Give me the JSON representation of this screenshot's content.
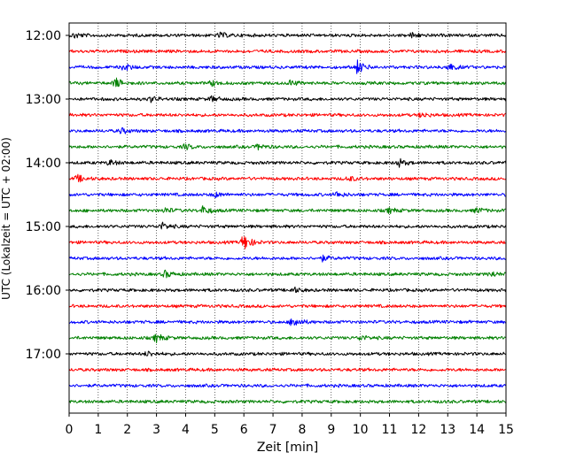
{
  "chart_data": {
    "type": "line",
    "title": "",
    "xlabel": "Zeit  [min]",
    "ylabel": "UTC (Lokalzeit = UTC + 02:00)",
    "xlim": [
      0,
      15
    ],
    "x_ticks": [
      "0",
      "1",
      "2",
      "3",
      "4",
      "5",
      "6",
      "7",
      "8",
      "9",
      "10",
      "11",
      "12",
      "13",
      "14",
      "15"
    ],
    "y_tick_labels": [
      "12:00",
      "13:00",
      "14:00",
      "15:00",
      "16:00",
      "17:00"
    ],
    "grid": "vertical dotted lines at each minute",
    "trace_interval_minutes": 15,
    "trace_colors": [
      "#000000",
      "#ff0000",
      "#0000ff",
      "#008000"
    ],
    "traces": [
      {
        "start": "12:00",
        "color": "#000000",
        "events": [
          {
            "t": 0.2,
            "amp": 0.3
          },
          {
            "t": 5.2,
            "amp": 0.3
          },
          {
            "t": 11.8,
            "amp": 0.3
          }
        ]
      },
      {
        "start": "12:15",
        "color": "#ff0000",
        "events": []
      },
      {
        "start": "12:30",
        "color": "#0000ff",
        "events": [
          {
            "t": 1.9,
            "amp": 0.4
          },
          {
            "t": 9.9,
            "amp": 0.8
          },
          {
            "t": 13.0,
            "amp": 0.5
          }
        ]
      },
      {
        "start": "12:45",
        "color": "#008000",
        "events": [
          {
            "t": 1.6,
            "amp": 0.6
          },
          {
            "t": 4.9,
            "amp": 0.3
          },
          {
            "t": 7.6,
            "amp": 0.3
          }
        ]
      },
      {
        "start": "13:00",
        "color": "#000000",
        "events": [
          {
            "t": 2.8,
            "amp": 0.3
          },
          {
            "t": 4.9,
            "amp": 0.3
          }
        ]
      },
      {
        "start": "13:15",
        "color": "#ff0000",
        "events": [
          {
            "t": 12.1,
            "amp": 0.3
          }
        ]
      },
      {
        "start": "13:30",
        "color": "#0000ff",
        "events": [
          {
            "t": 1.8,
            "amp": 0.3
          }
        ]
      },
      {
        "start": "13:45",
        "color": "#008000",
        "events": [
          {
            "t": 4.0,
            "amp": 0.3
          },
          {
            "t": 6.5,
            "amp": 0.3
          }
        ]
      },
      {
        "start": "14:00",
        "color": "#000000",
        "events": [
          {
            "t": 1.4,
            "amp": 0.3
          },
          {
            "t": 11.3,
            "amp": 0.5
          }
        ]
      },
      {
        "start": "14:15",
        "color": "#ff0000",
        "events": [
          {
            "t": 0.3,
            "amp": 0.4
          },
          {
            "t": 9.6,
            "amp": 0.3
          }
        ]
      },
      {
        "start": "14:30",
        "color": "#0000ff",
        "events": [
          {
            "t": 5.0,
            "amp": 0.3
          },
          {
            "t": 9.2,
            "amp": 0.3
          }
        ]
      },
      {
        "start": "14:45",
        "color": "#008000",
        "events": [
          {
            "t": 3.3,
            "amp": 0.3
          },
          {
            "t": 4.6,
            "amp": 0.5
          },
          {
            "t": 11.0,
            "amp": 0.3
          },
          {
            "t": 14.0,
            "amp": 0.3
          }
        ]
      },
      {
        "start": "15:00",
        "color": "#000000",
        "events": [
          {
            "t": 3.2,
            "amp": 0.4
          }
        ]
      },
      {
        "start": "15:15",
        "color": "#ff0000",
        "events": [
          {
            "t": 6.0,
            "amp": 1.0
          }
        ]
      },
      {
        "start": "15:30",
        "color": "#0000ff",
        "events": [
          {
            "t": 8.7,
            "amp": 0.3
          }
        ]
      },
      {
        "start": "15:45",
        "color": "#008000",
        "events": [
          {
            "t": 3.3,
            "amp": 0.4
          },
          {
            "t": 14.5,
            "amp": 0.3
          }
        ]
      },
      {
        "start": "16:00",
        "color": "#000000",
        "events": [
          {
            "t": 7.7,
            "amp": 0.3
          }
        ]
      },
      {
        "start": "16:15",
        "color": "#ff0000",
        "events": []
      },
      {
        "start": "16:30",
        "color": "#0000ff",
        "events": [
          {
            "t": 7.7,
            "amp": 0.7
          }
        ]
      },
      {
        "start": "16:45",
        "color": "#008000",
        "events": [
          {
            "t": 3.0,
            "amp": 0.5
          },
          {
            "t": 10.0,
            "amp": 0.3
          }
        ]
      },
      {
        "start": "17:00",
        "color": "#000000",
        "events": [
          {
            "t": 2.7,
            "amp": 0.3
          }
        ]
      },
      {
        "start": "17:15",
        "color": "#ff0000",
        "events": []
      },
      {
        "start": "17:30",
        "color": "#0000ff",
        "events": []
      },
      {
        "start": "17:45",
        "color": "#008000",
        "events": []
      }
    ]
  }
}
